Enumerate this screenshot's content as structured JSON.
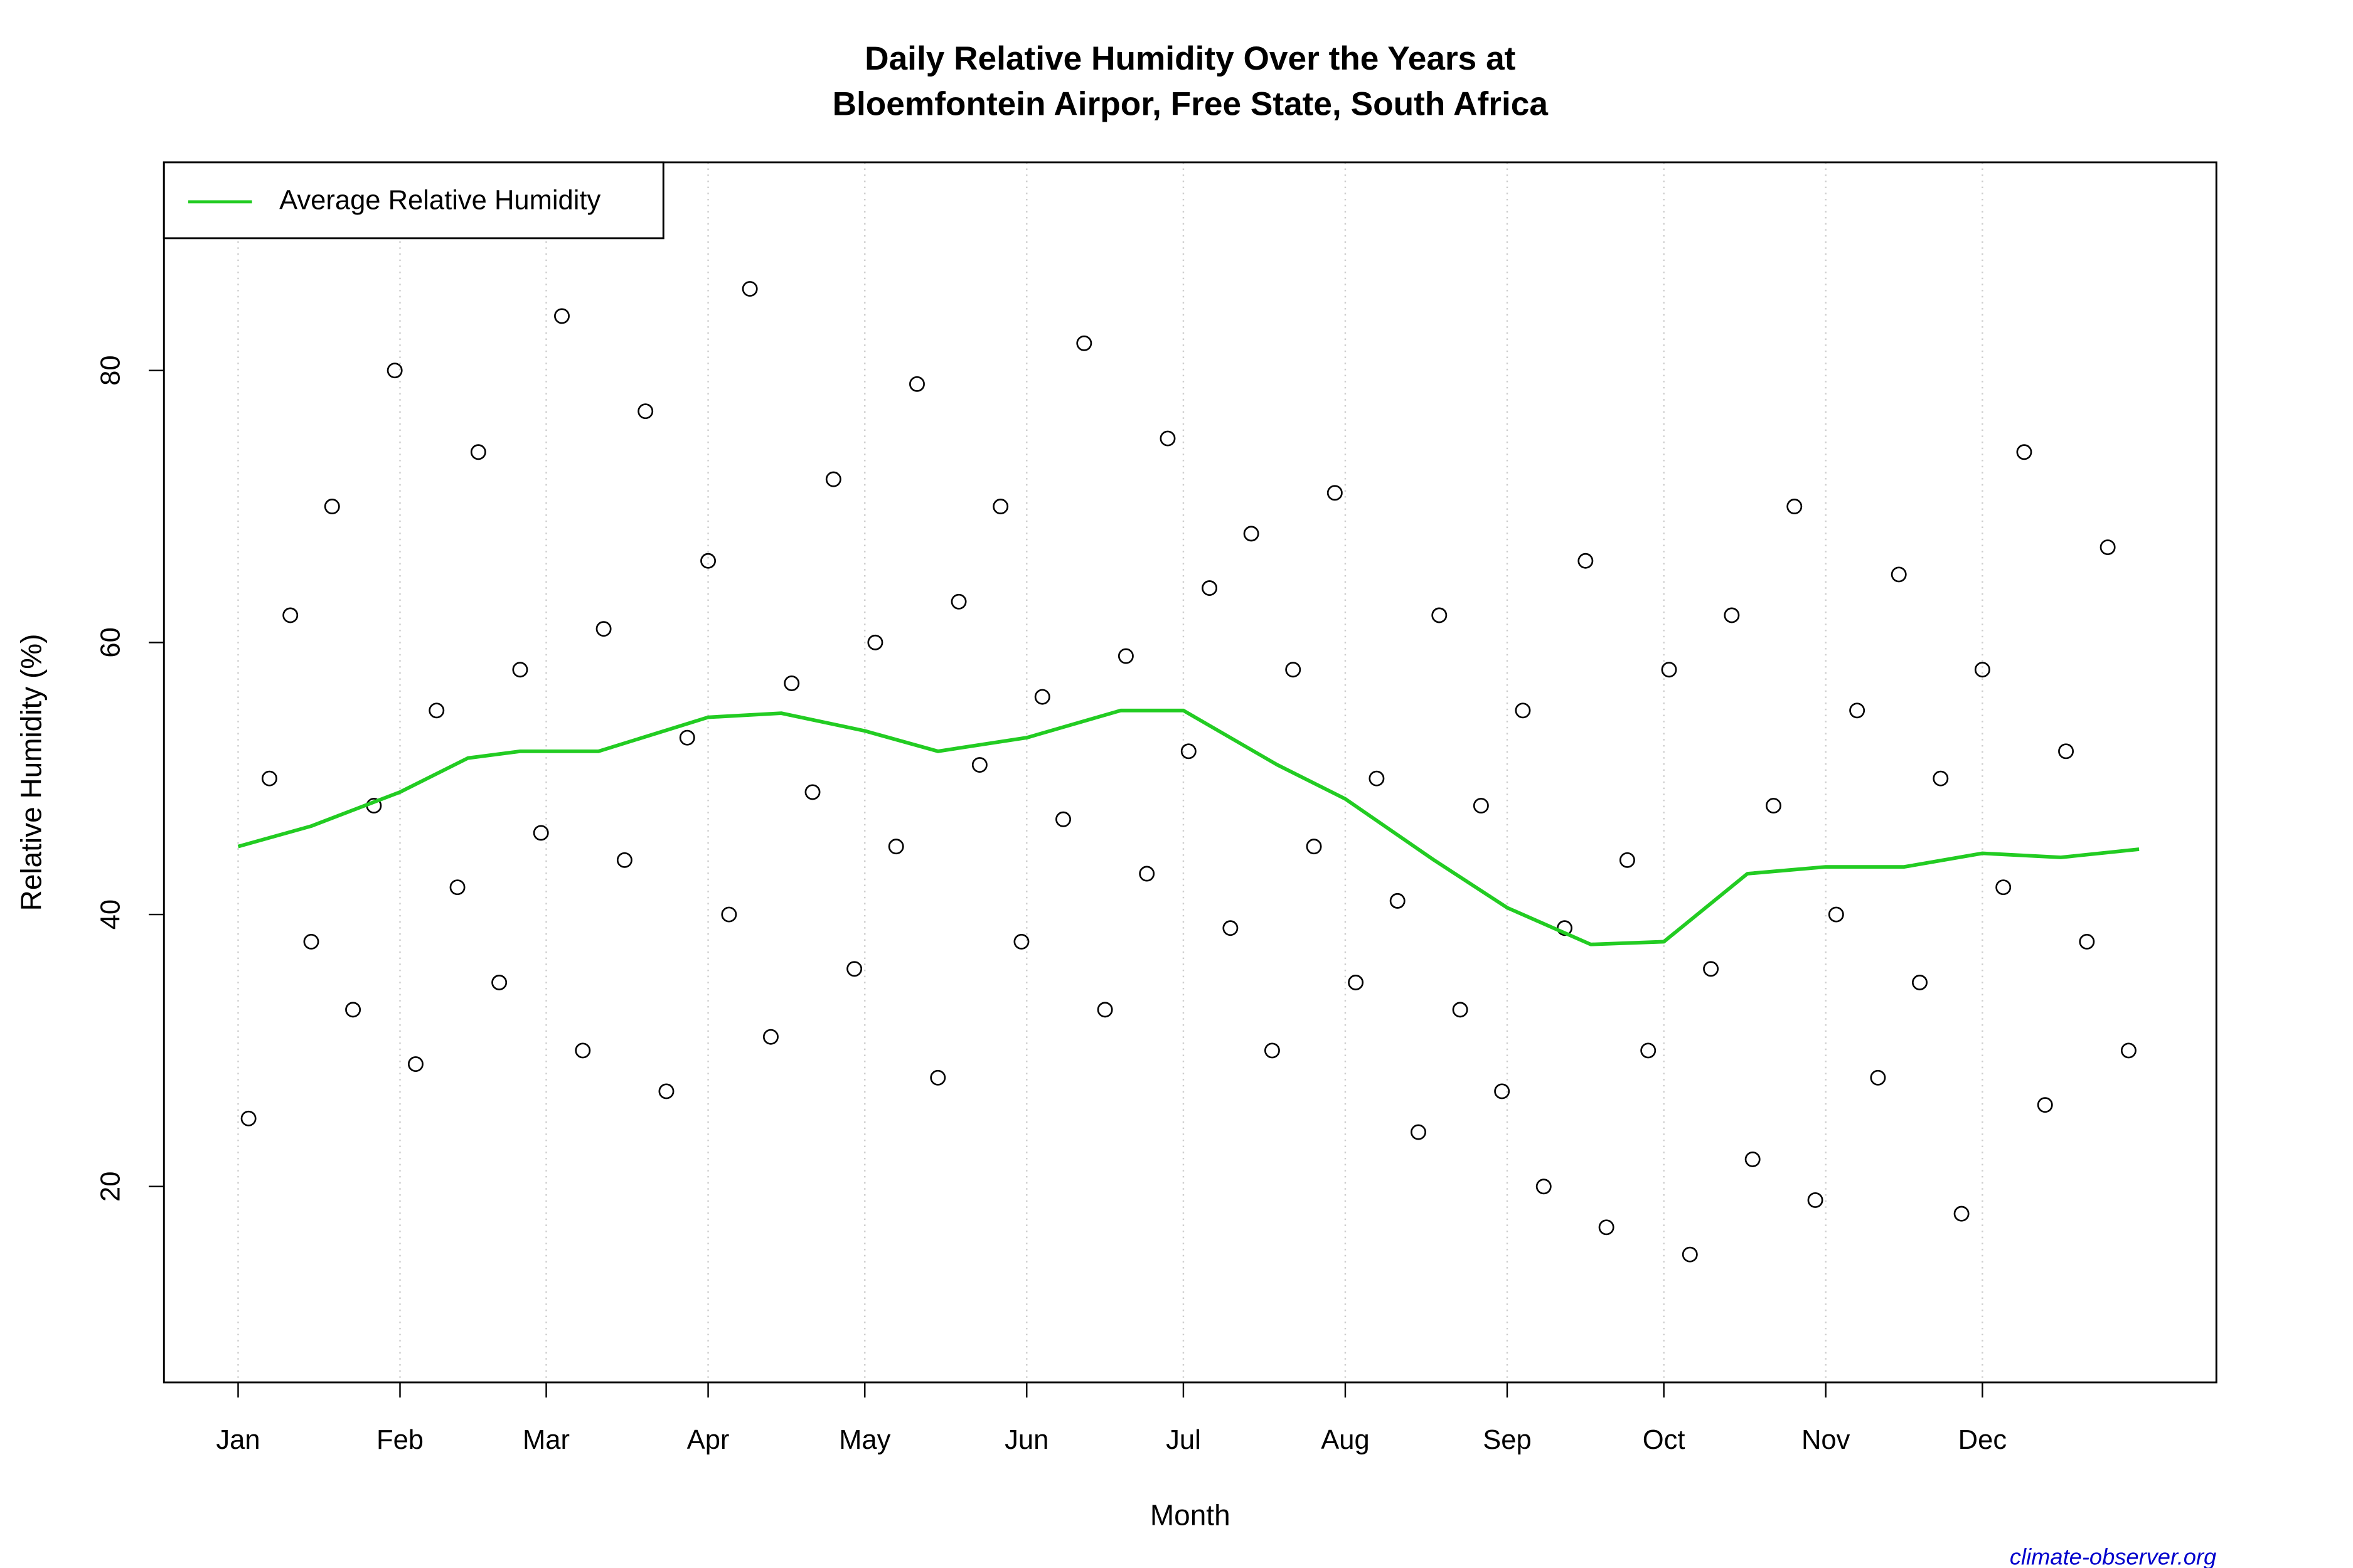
{
  "chart_data": {
    "type": "scatter",
    "title": "Daily Relative Humidity Over the Years at",
    "subtitle": "Bloemfontein Airpor, Free State, South Africa",
    "x_label": "Month",
    "y_label": "Relative Humidity  (%)",
    "credit": "climate-observer.org",
    "xlim": [
      -13.2,
      379.8
    ],
    "ylim": [
      5.6,
      95.3
    ],
    "xticks": [
      {
        "value": 1,
        "label": "Jan"
      },
      {
        "value": 32,
        "label": "Feb"
      },
      {
        "value": 60,
        "label": "Mar"
      },
      {
        "value": 91,
        "label": "Apr"
      },
      {
        "value": 121,
        "label": "May"
      },
      {
        "value": 152,
        "label": "Jun"
      },
      {
        "value": 182,
        "label": "Jul"
      },
      {
        "value": 213,
        "label": "Aug"
      },
      {
        "value": 244,
        "label": "Sep"
      },
      {
        "value": 274,
        "label": "Oct"
      },
      {
        "value": 305,
        "label": "Nov"
      },
      {
        "value": 335,
        "label": "Dec"
      }
    ],
    "yticks": [
      20,
      40,
      60,
      80
    ],
    "grid": true,
    "legend": "top-left",
    "points": {
      "color": "#000000",
      "x": [
        3,
        7,
        11,
        15,
        19,
        23,
        27,
        31,
        35,
        39,
        43,
        47,
        51,
        55,
        59,
        63,
        67,
        71,
        75,
        79,
        83,
        87,
        91,
        95,
        99,
        103,
        107,
        111,
        115,
        119,
        123,
        127,
        131,
        135,
        139,
        143,
        147,
        151,
        155,
        159,
        163,
        167,
        171,
        175,
        179,
        183,
        187,
        191,
        195,
        199,
        203,
        207,
        211,
        215,
        219,
        223,
        227,
        231,
        235,
        239,
        243,
        247,
        251,
        255,
        259,
        263,
        267,
        271,
        275,
        279,
        283,
        287,
        291,
        295,
        299,
        303,
        307,
        311,
        315,
        319,
        323,
        327,
        331,
        335,
        339,
        343,
        347,
        351,
        355,
        359,
        363
      ],
      "values": [
        25,
        50,
        62,
        38,
        70,
        33,
        48,
        80,
        29,
        55,
        42,
        74,
        35,
        58,
        46,
        84,
        30,
        61,
        44,
        77,
        27,
        53,
        66,
        40,
        86,
        31,
        57,
        49,
        72,
        36,
        60,
        45,
        79,
        28,
        63,
        51,
        70,
        38,
        56,
        47,
        82,
        33,
        59,
        43,
        75,
        52,
        64,
        39,
        68,
        30,
        58,
        45,
        71,
        35,
        50,
        41,
        24,
        62,
        33,
        48,
        27,
        55,
        20,
        39,
        66,
        17,
        44,
        30,
        58,
        15,
        36,
        62,
        22,
        48,
        70,
        19,
        40,
        55,
        28,
        65,
        35,
        50,
        18,
        58,
        42,
        74,
        26,
        52,
        38,
        67,
        30
      ]
    },
    "series": [
      {
        "name": "Average Relative Humidity",
        "color": "#22cc22",
        "x": [
          1,
          15,
          32,
          45,
          55,
          70,
          91,
          105,
          121,
          135,
          152,
          170,
          182,
          200,
          213,
          230,
          244,
          260,
          274,
          290,
          305,
          320,
          335,
          350,
          365
        ],
        "values": [
          45,
          46.5,
          49,
          51.5,
          52,
          52,
          54.5,
          54.8,
          53.5,
          52,
          53,
          55,
          55,
          51,
          48.5,
          44,
          40.5,
          37.8,
          38,
          43,
          43.5,
          43.5,
          44.5,
          44.2,
          44.8
        ]
      }
    ]
  }
}
